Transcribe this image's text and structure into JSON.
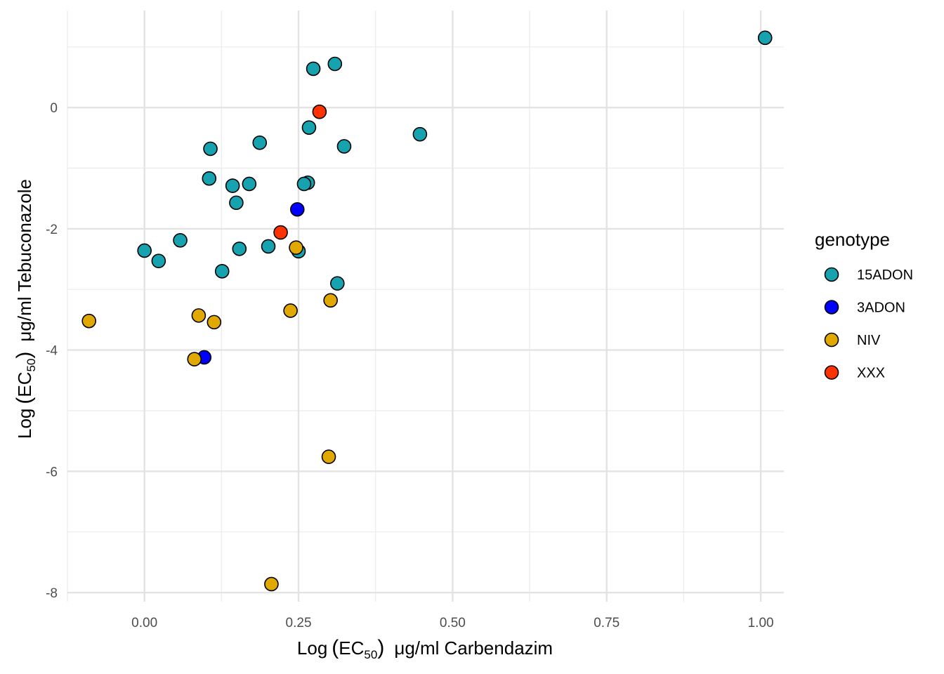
{
  "chart_data": {
    "type": "scatter",
    "xlabel": {
      "prefix": "Log",
      "ec": "EC",
      "sub": "50",
      "unit": "μg/ml",
      "drug": "Carbendazim"
    },
    "ylabel": {
      "prefix": "Log",
      "ec": "EC",
      "sub": "50",
      "unit": "μg/ml",
      "drug": "Tebuconazole"
    },
    "xlim": [
      -0.125,
      1.0375
    ],
    "ylim": [
      -8.15,
      1.6
    ],
    "x_ticks": [
      0.0,
      0.25,
      0.5,
      0.75,
      1.0
    ],
    "x_tick_labels": [
      "0.00",
      "0.25",
      "0.50",
      "0.75",
      "1.00"
    ],
    "x_minor_ticks": [
      -0.125,
      0.125,
      0.375,
      0.625,
      0.875
    ],
    "y_ticks": [
      0,
      -2,
      -4,
      -6,
      -8
    ],
    "y_tick_labels": [
      "0",
      "-2",
      "-4",
      "-6",
      "-8"
    ],
    "y_minor_ticks": [
      1,
      -1,
      -3,
      -5,
      -7
    ],
    "grid": true,
    "legend": {
      "title": "genotype",
      "position": "right"
    },
    "colors": {
      "15ADON": "#17a2b0",
      "3ADON": "#0000ff",
      "NIV": "#e0a800",
      "XXX": "#ff3300"
    },
    "series": [
      {
        "name": "15ADON",
        "x": [
          1.007,
          0.309,
          0.274,
          0.267,
          0.447,
          0.324,
          0.187,
          0.107,
          0.265,
          0.259,
          0.17,
          0.105,
          0.143,
          0.149,
          0.058,
          0.0,
          0.023,
          0.154,
          0.201,
          0.25,
          0.126,
          0.313
        ],
        "y": [
          1.15,
          0.72,
          0.64,
          -0.33,
          -0.44,
          -0.64,
          -0.58,
          -0.68,
          -1.24,
          -1.26,
          -1.26,
          -1.17,
          -1.29,
          -1.57,
          -2.19,
          -2.36,
          -2.53,
          -2.33,
          -2.29,
          -2.37,
          -2.7,
          -2.9
        ]
      },
      {
        "name": "3ADON",
        "x": [
          0.248,
          0.097
        ],
        "y": [
          -1.68,
          -4.12
        ]
      },
      {
        "name": "NIV",
        "x": [
          -0.09,
          0.088,
          0.113,
          0.081,
          0.237,
          0.302,
          0.246,
          0.299,
          0.206
        ],
        "y": [
          -3.52,
          -3.43,
          -3.54,
          -4.15,
          -3.35,
          -3.18,
          -2.31,
          -5.76,
          -7.86
        ]
      },
      {
        "name": "XXX",
        "x": [
          0.284,
          0.221
        ],
        "y": [
          -0.07,
          -2.06
        ]
      }
    ]
  }
}
